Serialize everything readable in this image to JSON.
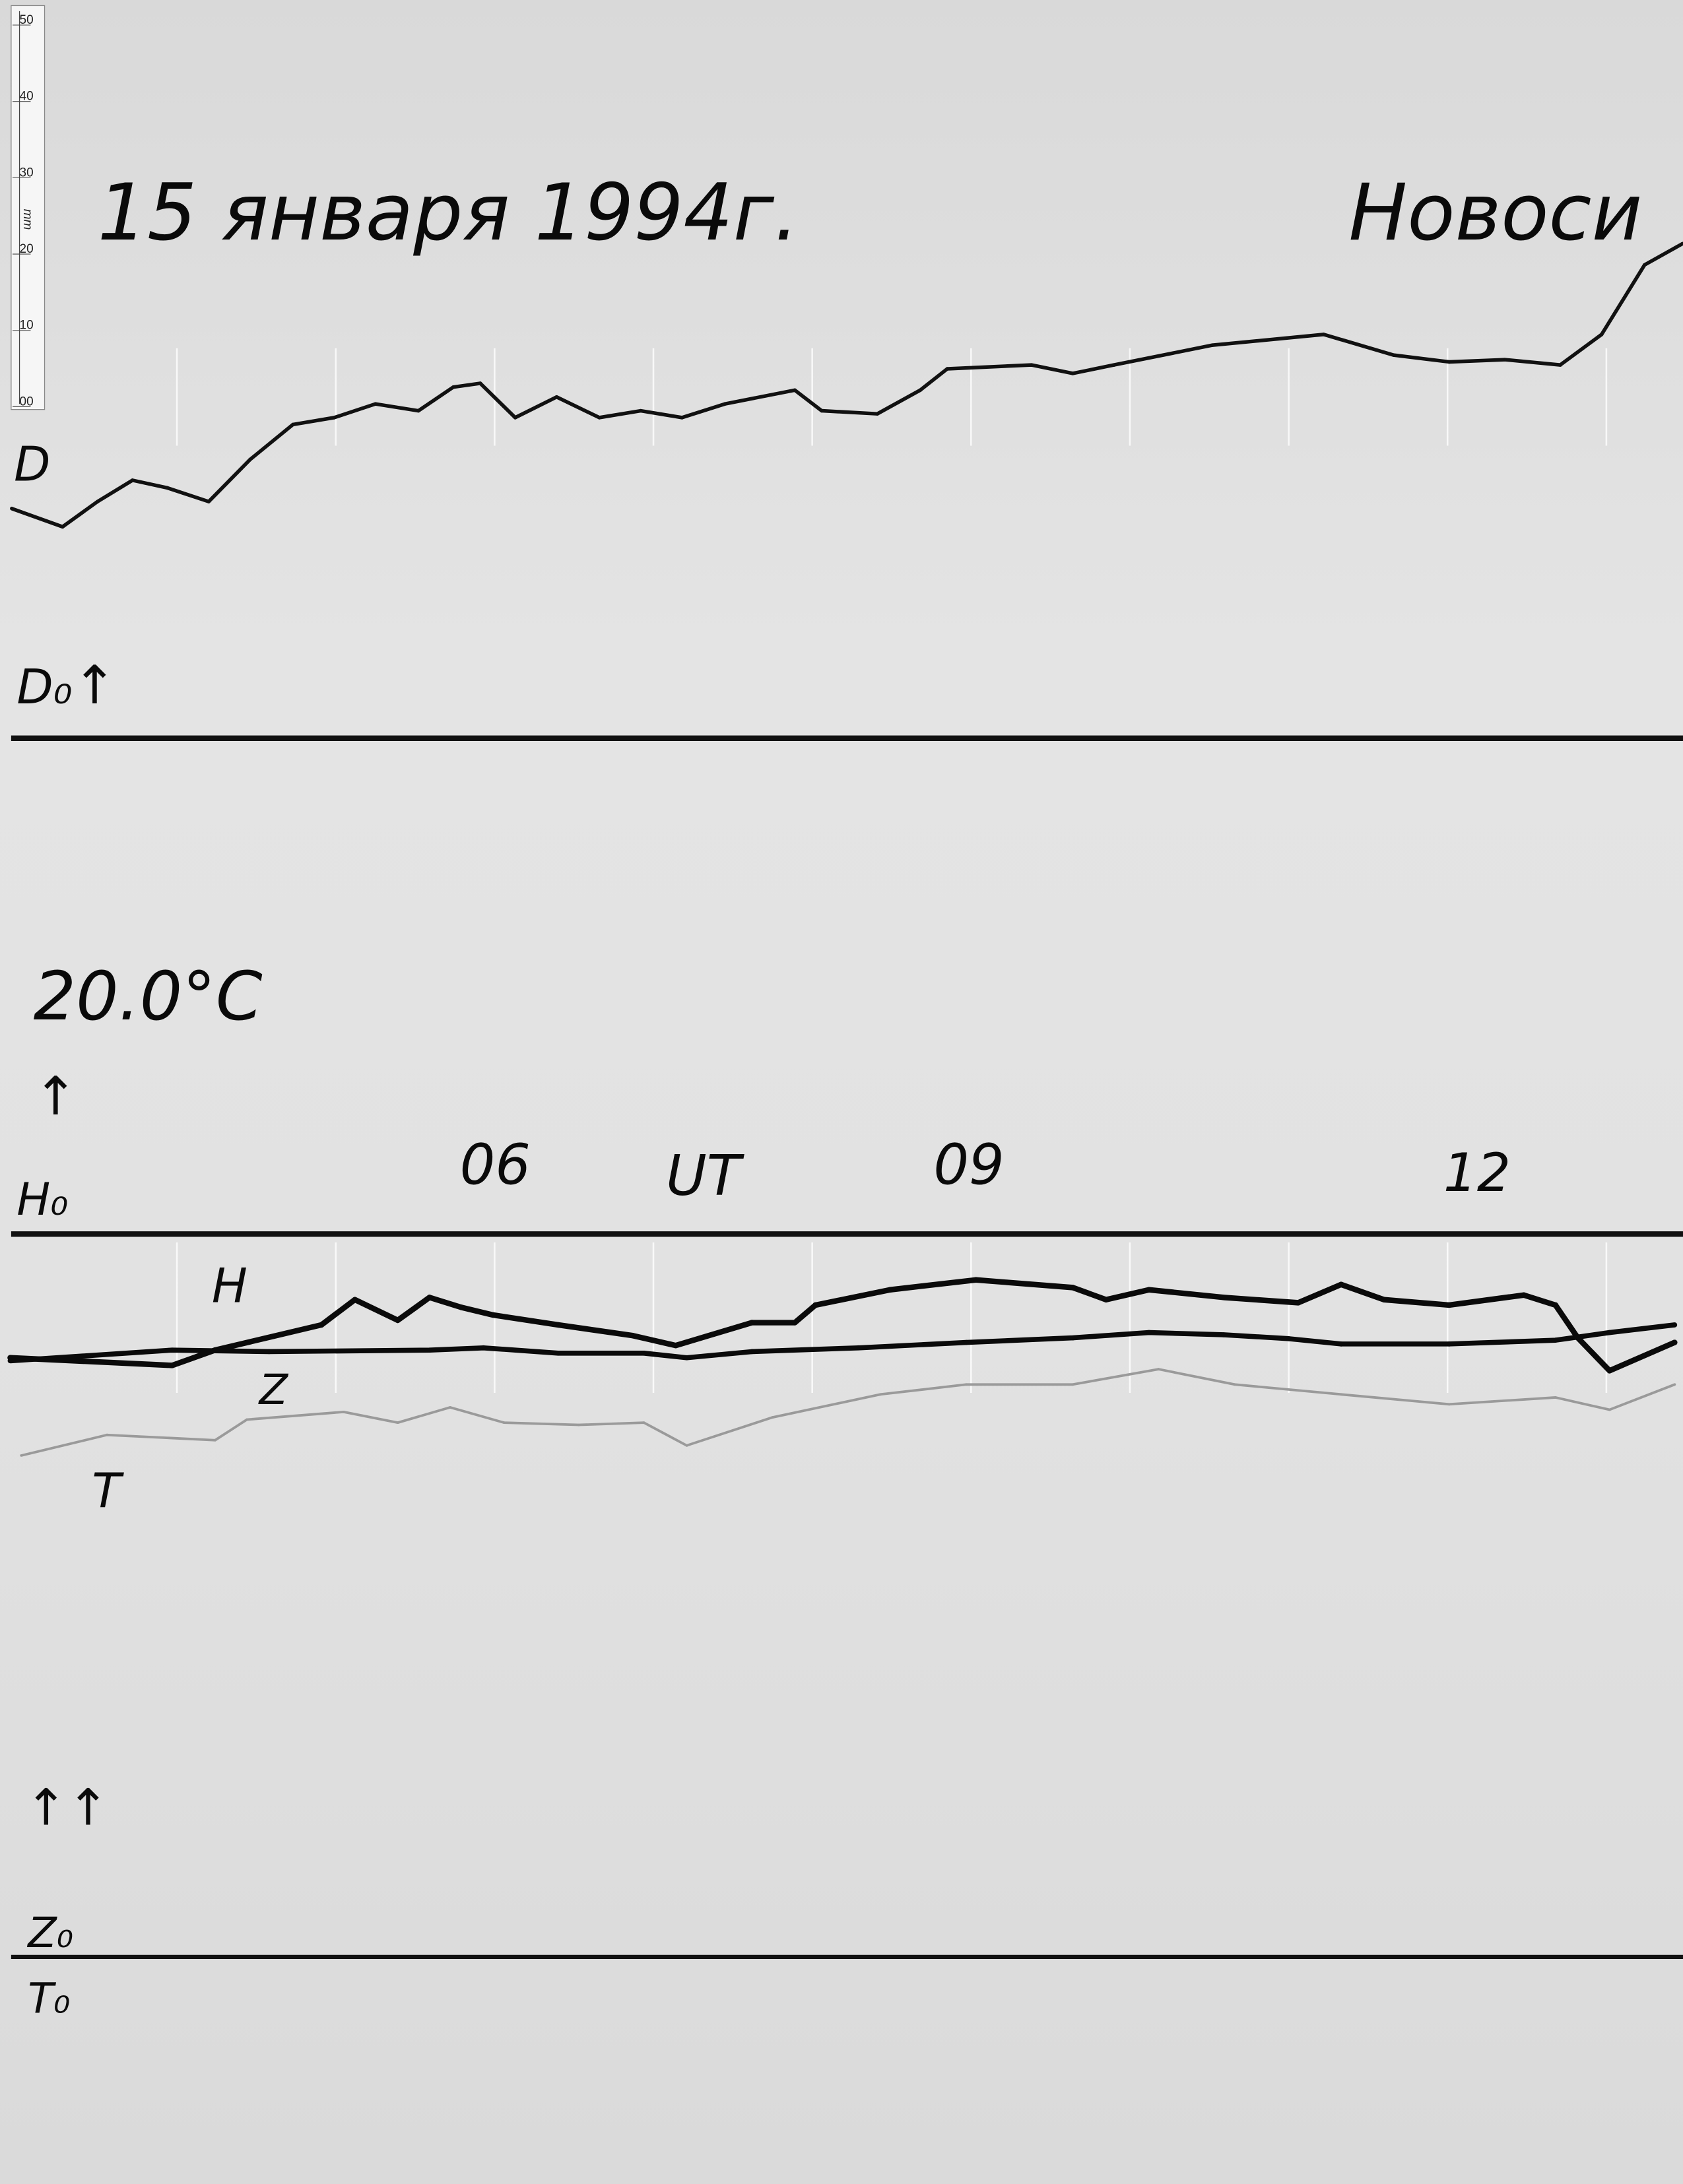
{
  "header": {
    "date": "15 января 1994г.",
    "station": "Новоси"
  },
  "ruler": {
    "unit": "mm",
    "ticks": [
      "50",
      "40",
      "30",
      "20",
      "10",
      "00"
    ]
  },
  "labels": {
    "d": "D",
    "d0": "D₀",
    "temperature": "20.0°C",
    "h0": "H₀",
    "h": "H",
    "z": "Z",
    "t": "T",
    "z0": "Z₀",
    "t0": "T₀",
    "arrow_up": "↑",
    "double_arrow_up": "↑↑"
  },
  "chart_data": {
    "type": "line",
    "title": "15 января 1994г.",
    "xlabel": "UT",
    "ylabel": "",
    "x_unit": "hours UT",
    "y_unit": "mm deflection from baseline (ruler scale)",
    "xlim": [
      2.95,
      13.48
    ],
    "tick_labels": [
      {
        "hour": 6,
        "label": "06"
      },
      {
        "hour": 9,
        "label": "09"
      },
      {
        "hour": 12,
        "label": "12"
      }
    ],
    "hour_marks": [
      4,
      5,
      6,
      7,
      8,
      9,
      10,
      11,
      12,
      13
    ],
    "grid": false,
    "baselines": [
      "D₀",
      "H₀",
      "Z₀ / T₀"
    ],
    "series": [
      {
        "name": "D",
        "baseline": "D₀",
        "x": [
          2.96,
          3.28,
          3.5,
          3.72,
          3.94,
          4.2,
          4.46,
          4.73,
          4.99,
          5.25,
          5.52,
          5.74,
          5.91,
          6.13,
          6.39,
          6.66,
          6.92,
          7.18,
          7.45,
          7.89,
          8.06,
          8.41,
          8.68,
          8.85,
          9.38,
          9.64,
          9.9,
          10.52,
          11.22,
          11.66,
          12.01,
          12.36,
          12.71,
          12.97,
          13.24,
          13.48
        ],
        "y": [
          30.1,
          27.7,
          31.0,
          33.8,
          32.8,
          31.0,
          36.5,
          41.1,
          42.0,
          43.8,
          42.9,
          46.0,
          46.5,
          42.0,
          44.7,
          42.0,
          42.9,
          42.0,
          43.8,
          45.6,
          42.9,
          42.5,
          45.6,
          48.4,
          48.9,
          47.8,
          48.9,
          51.5,
          52.9,
          50.2,
          49.3,
          49.6,
          48.9,
          52.9,
          62.0,
          64.8
        ]
      },
      {
        "name": "H",
        "baseline": "H₀",
        "x": [
          2.95,
          3.97,
          4.24,
          4.91,
          5.12,
          5.39,
          5.59,
          5.79,
          5.99,
          6.4,
          6.87,
          7.14,
          7.62,
          7.89,
          8.02,
          8.49,
          9.03,
          9.64,
          9.85,
          10.12,
          10.59,
          11.06,
          11.33,
          11.6,
          12.01,
          12.48,
          12.68,
          12.82,
          13.02,
          13.43
        ],
        "y": [
          -16.2,
          -17.2,
          -15.2,
          -11.9,
          -8.6,
          -11.3,
          -8.3,
          -9.6,
          -10.6,
          -11.9,
          -13.3,
          -14.6,
          -11.6,
          -11.6,
          -9.3,
          -7.3,
          -6.0,
          -7.0,
          -8.6,
          -7.3,
          -8.3,
          -9.0,
          -6.6,
          -8.6,
          -9.3,
          -8.0,
          -9.3,
          -13.6,
          -17.9,
          -14.2
        ]
      },
      {
        "name": "Z",
        "baseline": "H₀",
        "x": [
          2.95,
          3.97,
          4.58,
          5.59,
          5.93,
          6.4,
          6.94,
          7.21,
          7.62,
          8.29,
          8.97,
          9.64,
          10.12,
          10.59,
          11.0,
          11.33,
          12.01,
          12.68,
          13.02,
          13.43
        ],
        "y": [
          -16.6,
          -15.2,
          -15.4,
          -15.2,
          -14.9,
          -15.6,
          -15.6,
          -16.2,
          -15.4,
          -14.9,
          -14.2,
          -13.6,
          -12.9,
          -13.2,
          -13.7,
          -14.4,
          -14.4,
          -13.9,
          -12.9,
          -11.9
        ]
      },
      {
        "name": "T",
        "baseline": "T₀",
        "x": [
          3.02,
          3.56,
          4.24,
          4.44,
          5.05,
          5.39,
          5.72,
          6.06,
          6.53,
          6.94,
          7.21,
          7.75,
          8.43,
          8.97,
          9.64,
          10.18,
          10.66,
          11.33,
          12.01,
          12.68,
          13.02,
          13.43
        ],
        "y": [
          65.7,
          68.4,
          67.7,
          70.4,
          71.4,
          70.0,
          72.0,
          70.0,
          69.7,
          70.0,
          67.0,
          70.7,
          73.7,
          75.0,
          75.0,
          77.0,
          75.0,
          73.7,
          72.4,
          73.3,
          71.7,
          75.0
        ]
      }
    ]
  }
}
